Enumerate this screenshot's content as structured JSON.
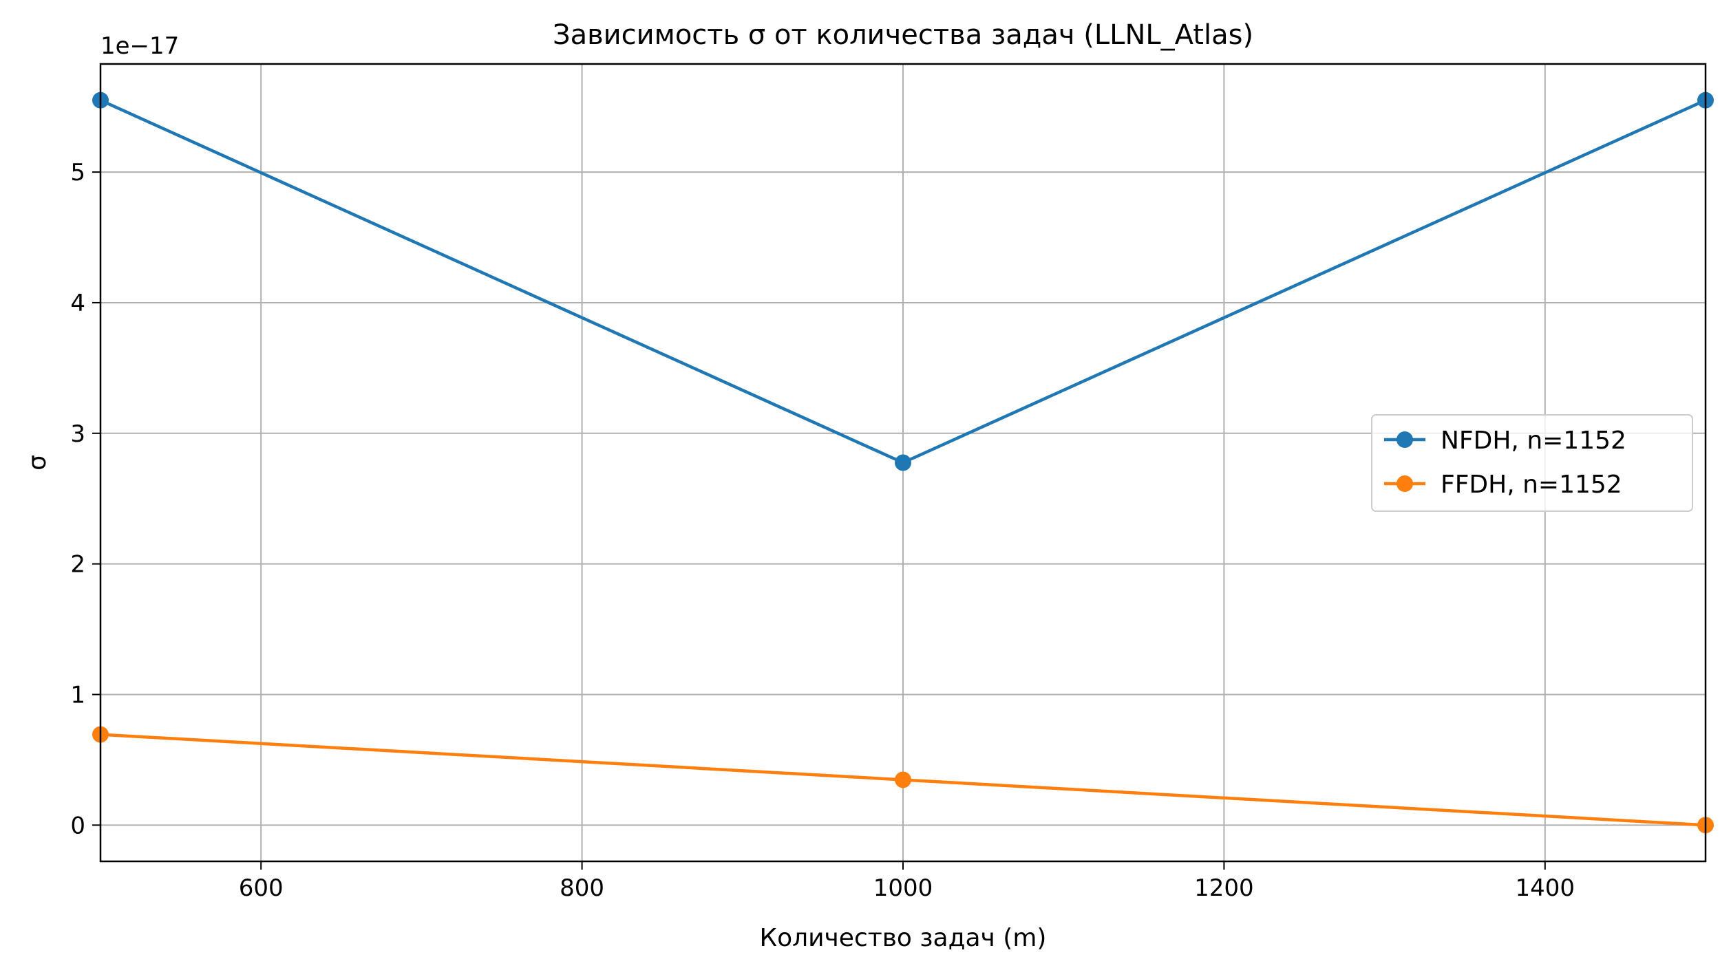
{
  "chart_data": {
    "type": "line",
    "title": "Зависимость σ от количества задач (LLNL_Atlas)",
    "xlabel": "Количество задач (m)",
    "ylabel": "σ",
    "y_offset_label": "1e−17",
    "y_scale_exponent": -17,
    "x": [
      500,
      1000,
      1500
    ],
    "xlim": [
      500,
      1500
    ],
    "ylim": [
      -0.2775,
      5.8275
    ],
    "x_ticks": [
      600,
      800,
      1000,
      1200,
      1400
    ],
    "y_ticks": [
      0,
      1,
      2,
      3,
      4,
      5
    ],
    "grid": true,
    "legend_position": "center-right",
    "series": [
      {
        "name": "NFDH, n=1152",
        "values": [
          5.55,
          2.775,
          5.55
        ],
        "color": "#1f77b4",
        "marker": "circle"
      },
      {
        "name": "FFDH, n=1152",
        "values": [
          0.694,
          0.347,
          0.0
        ],
        "color": "#ff7f0e",
        "marker": "circle"
      }
    ]
  }
}
